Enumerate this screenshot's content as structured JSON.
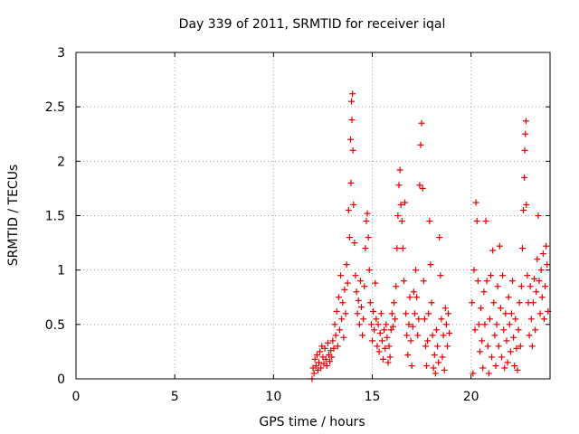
{
  "chart_data": {
    "type": "scatter",
    "title": "Day 339 of 2011, SRMTID for receiver iqal",
    "xlabel": "GPS time / hours",
    "ylabel": "SRMTID / TECUs",
    "xlim": [
      0,
      24
    ],
    "ylim": [
      0,
      3
    ],
    "x_ticks": [
      0,
      5,
      10,
      15,
      20
    ],
    "y_ticks": [
      0,
      0.5,
      1,
      1.5,
      2,
      2.5,
      3
    ],
    "x_tick_labels": [
      "0",
      "5",
      "10",
      "15",
      "20"
    ],
    "y_tick_labels": [
      "0",
      "0.5",
      "1",
      "1.5",
      "2",
      "2.5",
      "3"
    ],
    "grid": true,
    "marker": "+",
    "series": [
      {
        "name": "SRMTID",
        "color": "#e00000",
        "points": [
          [
            11.95,
            0.0
          ],
          [
            12.0,
            0.1
          ],
          [
            12.05,
            0.05
          ],
          [
            12.1,
            0.18
          ],
          [
            12.15,
            0.12
          ],
          [
            12.2,
            0.22
          ],
          [
            12.25,
            0.08
          ],
          [
            12.3,
            0.15
          ],
          [
            12.35,
            0.25
          ],
          [
            12.4,
            0.1
          ],
          [
            12.45,
            0.3
          ],
          [
            12.5,
            0.2
          ],
          [
            12.55,
            0.14
          ],
          [
            12.6,
            0.28
          ],
          [
            12.65,
            0.18
          ],
          [
            12.7,
            0.12
          ],
          [
            12.75,
            0.33
          ],
          [
            12.8,
            0.22
          ],
          [
            12.85,
            0.16
          ],
          [
            12.9,
            0.26
          ],
          [
            12.95,
            0.2
          ],
          [
            13.0,
            0.35
          ],
          [
            13.05,
            0.28
          ],
          [
            13.1,
            0.5
          ],
          [
            13.15,
            0.4
          ],
          [
            13.2,
            0.62
          ],
          [
            13.25,
            0.3
          ],
          [
            13.3,
            0.75
          ],
          [
            13.35,
            0.45
          ],
          [
            13.4,
            0.95
          ],
          [
            13.45,
            0.55
          ],
          [
            13.5,
            0.7
          ],
          [
            13.55,
            0.38
          ],
          [
            13.6,
            0.82
          ],
          [
            13.65,
            0.6
          ],
          [
            13.7,
            1.05
          ],
          [
            13.75,
            0.88
          ],
          [
            13.8,
            1.55
          ],
          [
            13.85,
            1.3
          ],
          [
            13.9,
            2.2
          ],
          [
            13.92,
            1.8
          ],
          [
            13.95,
            2.55
          ],
          [
            13.97,
            2.38
          ],
          [
            14.0,
            2.62
          ],
          [
            14.02,
            2.1
          ],
          [
            14.05,
            1.6
          ],
          [
            14.1,
            1.25
          ],
          [
            14.15,
            0.95
          ],
          [
            14.2,
            0.8
          ],
          [
            14.25,
            0.6
          ],
          [
            14.3,
            0.72
          ],
          [
            14.35,
            0.5
          ],
          [
            14.4,
            0.9
          ],
          [
            14.45,
            0.66
          ],
          [
            14.5,
            0.4
          ],
          [
            14.55,
            0.55
          ],
          [
            14.6,
            0.85
          ],
          [
            14.65,
            1.2
          ],
          [
            14.7,
            1.45
          ],
          [
            14.75,
            1.52
          ],
          [
            14.8,
            1.3
          ],
          [
            14.85,
            1.0
          ],
          [
            14.9,
            0.7
          ],
          [
            14.95,
            0.5
          ],
          [
            15.0,
            0.35
          ],
          [
            15.05,
            0.62
          ],
          [
            15.1,
            0.45
          ],
          [
            15.15,
            0.88
          ],
          [
            15.2,
            0.55
          ],
          [
            15.25,
            0.3
          ],
          [
            15.3,
            0.5
          ],
          [
            15.35,
            0.25
          ],
          [
            15.4,
            0.42
          ],
          [
            15.45,
            0.6
          ],
          [
            15.5,
            0.35
          ],
          [
            15.55,
            0.18
          ],
          [
            15.6,
            0.45
          ],
          [
            15.65,
            0.28
          ],
          [
            15.7,
            0.5
          ],
          [
            15.75,
            0.38
          ],
          [
            15.8,
            0.15
          ],
          [
            15.85,
            0.3
          ],
          [
            15.9,
            0.2
          ],
          [
            15.95,
            0.45
          ],
          [
            16.0,
            0.6
          ],
          [
            16.05,
            0.48
          ],
          [
            16.1,
            0.7
          ],
          [
            16.15,
            0.55
          ],
          [
            16.2,
            0.85
          ],
          [
            16.25,
            1.2
          ],
          [
            16.3,
            1.5
          ],
          [
            16.35,
            1.78
          ],
          [
            16.4,
            1.92
          ],
          [
            16.45,
            1.6
          ],
          [
            16.5,
            1.45
          ],
          [
            16.55,
            1.2
          ],
          [
            16.6,
            0.9
          ],
          [
            16.65,
            1.62
          ],
          [
            16.7,
            0.6
          ],
          [
            16.75,
            0.4
          ],
          [
            16.8,
            0.22
          ],
          [
            16.85,
            0.5
          ],
          [
            16.9,
            0.75
          ],
          [
            16.95,
            0.35
          ],
          [
            17.0,
            0.12
          ],
          [
            17.05,
            0.48
          ],
          [
            17.1,
            0.8
          ],
          [
            17.15,
            0.6
          ],
          [
            17.2,
            1.0
          ],
          [
            17.25,
            0.75
          ],
          [
            17.3,
            0.4
          ],
          [
            17.35,
            0.55
          ],
          [
            17.4,
            1.78
          ],
          [
            17.45,
            2.15
          ],
          [
            17.5,
            2.35
          ],
          [
            17.55,
            1.75
          ],
          [
            17.6,
            0.9
          ],
          [
            17.65,
            0.55
          ],
          [
            17.7,
            0.3
          ],
          [
            17.75,
            0.12
          ],
          [
            17.8,
            0.35
          ],
          [
            17.85,
            0.6
          ],
          [
            17.9,
            1.45
          ],
          [
            17.95,
            1.05
          ],
          [
            18.0,
            0.7
          ],
          [
            18.05,
            0.4
          ],
          [
            18.1,
            0.1
          ],
          [
            18.15,
            0.22
          ],
          [
            18.2,
            0.05
          ],
          [
            18.25,
            0.45
          ],
          [
            18.3,
            0.3
          ],
          [
            18.35,
            0.15
          ],
          [
            18.4,
            1.3
          ],
          [
            18.45,
            0.95
          ],
          [
            18.5,
            0.55
          ],
          [
            18.55,
            0.2
          ],
          [
            18.6,
            0.4
          ],
          [
            18.65,
            0.08
          ],
          [
            18.7,
            0.65
          ],
          [
            18.75,
            0.5
          ],
          [
            18.8,
            0.3
          ],
          [
            18.85,
            0.6
          ],
          [
            18.9,
            0.42
          ],
          [
            20.05,
            0.7
          ],
          [
            20.1,
            0.05
          ],
          [
            20.15,
            1.0
          ],
          [
            20.2,
            0.45
          ],
          [
            20.25,
            1.62
          ],
          [
            20.3,
            1.45
          ],
          [
            20.35,
            0.9
          ],
          [
            20.4,
            0.5
          ],
          [
            20.45,
            0.25
          ],
          [
            20.5,
            0.65
          ],
          [
            20.55,
            0.35
          ],
          [
            20.6,
            0.1
          ],
          [
            20.65,
            0.8
          ],
          [
            20.7,
            0.5
          ],
          [
            20.75,
            1.45
          ],
          [
            20.8,
            0.9
          ],
          [
            20.85,
            0.3
          ],
          [
            20.9,
            0.05
          ],
          [
            20.95,
            0.55
          ],
          [
            21.0,
            0.95
          ],
          [
            21.05,
            0.2
          ],
          [
            21.1,
            1.18
          ],
          [
            21.15,
            0.7
          ],
          [
            21.2,
            0.4
          ],
          [
            21.25,
            0.12
          ],
          [
            21.3,
            0.5
          ],
          [
            21.35,
            0.85
          ],
          [
            21.4,
            0.3
          ],
          [
            21.45,
            1.22
          ],
          [
            21.5,
            0.65
          ],
          [
            21.55,
            0.2
          ],
          [
            21.6,
            0.95
          ],
          [
            21.65,
            0.45
          ],
          [
            21.7,
            0.1
          ],
          [
            21.75,
            0.6
          ],
          [
            21.8,
            0.35
          ],
          [
            21.85,
            0.15
          ],
          [
            21.9,
            0.75
          ],
          [
            21.95,
            0.5
          ],
          [
            22.0,
            0.25
          ],
          [
            22.05,
            0.6
          ],
          [
            22.1,
            0.9
          ],
          [
            22.15,
            0.38
          ],
          [
            22.2,
            0.12
          ],
          [
            22.25,
            0.55
          ],
          [
            22.3,
            0.28
          ],
          [
            22.35,
            0.08
          ],
          [
            22.4,
            0.45
          ],
          [
            22.45,
            0.7
          ],
          [
            22.5,
            0.3
          ],
          [
            22.55,
            0.85
          ],
          [
            22.6,
            1.2
          ],
          [
            22.65,
            1.55
          ],
          [
            22.7,
            1.85
          ],
          [
            22.72,
            2.1
          ],
          [
            22.75,
            2.25
          ],
          [
            22.78,
            2.37
          ],
          [
            22.8,
            1.6
          ],
          [
            22.85,
            0.95
          ],
          [
            22.9,
            0.7
          ],
          [
            22.95,
            0.4
          ],
          [
            23.0,
            0.85
          ],
          [
            23.05,
            0.55
          ],
          [
            23.1,
            0.3
          ],
          [
            23.15,
            0.7
          ],
          [
            23.2,
            0.92
          ],
          [
            23.25,
            0.45
          ],
          [
            23.3,
            0.8
          ],
          [
            23.35,
            1.1
          ],
          [
            23.4,
            1.5
          ],
          [
            23.45,
            0.9
          ],
          [
            23.5,
            0.6
          ],
          [
            23.55,
            1.0
          ],
          [
            23.6,
            0.75
          ],
          [
            23.65,
            1.15
          ],
          [
            23.7,
            0.55
          ],
          [
            23.75,
            0.85
          ],
          [
            23.8,
            1.22
          ],
          [
            23.85,
            1.05
          ],
          [
            23.9,
            0.62
          ]
        ]
      }
    ]
  }
}
